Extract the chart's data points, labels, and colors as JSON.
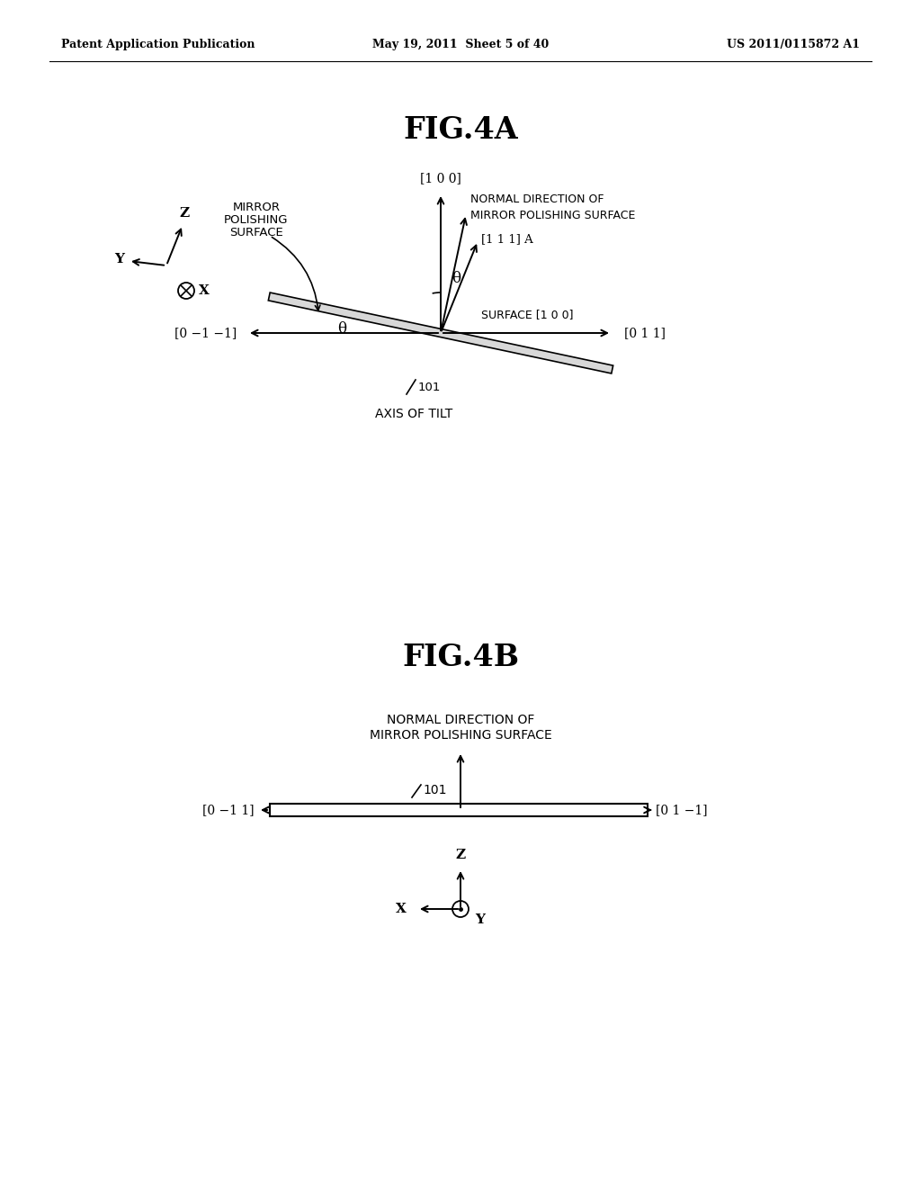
{
  "bg_color": "#ffffff",
  "header_left": "Patent Application Publication",
  "header_center": "May 19, 2011  Sheet 5 of 40",
  "header_right": "US 2011/0115872 A1",
  "fig4a_title": "FIG.4A",
  "fig4b_title": "FIG.4B"
}
